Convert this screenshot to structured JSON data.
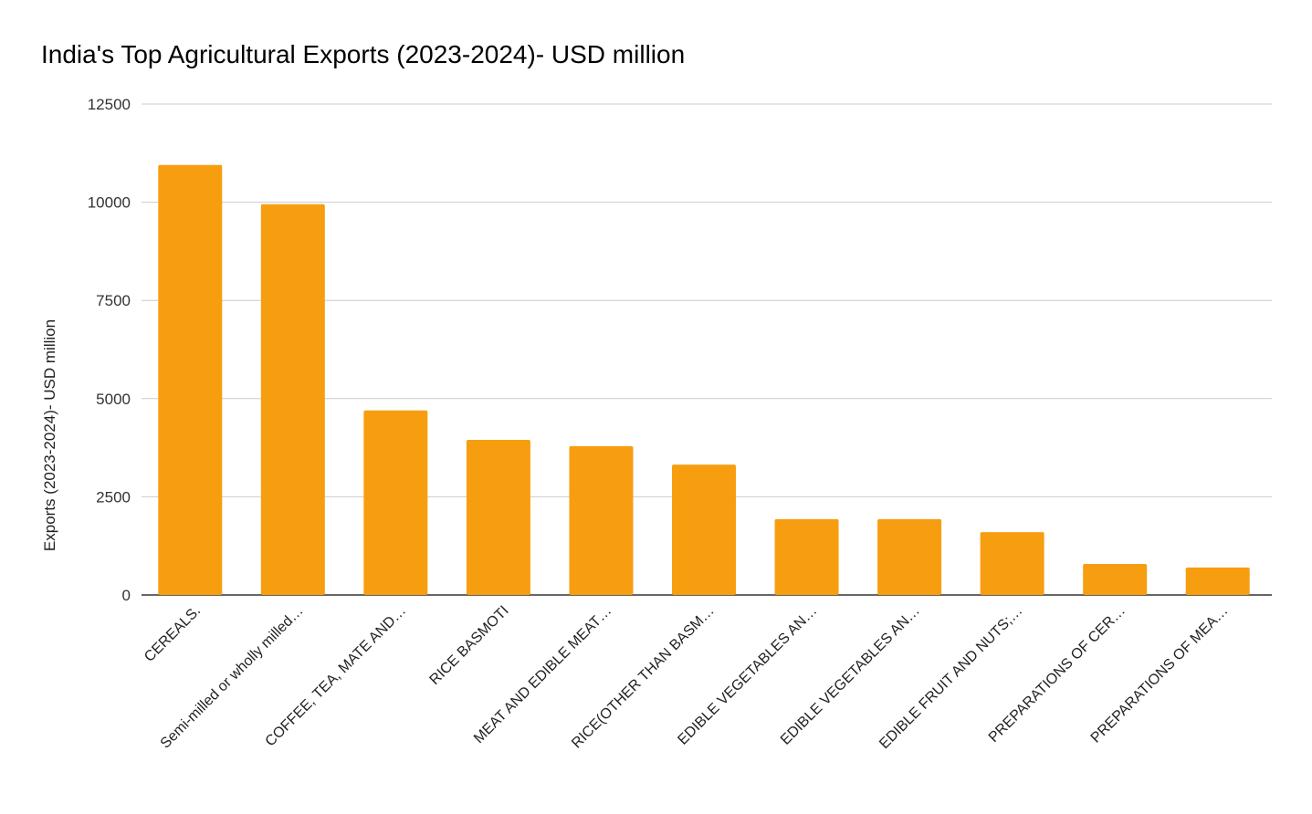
{
  "chart_data": {
    "type": "bar",
    "title": "India's Top Agricultural Exports (2023-2024)- USD million",
    "xlabel": "",
    "ylabel": "Exports (2023-2024)- USD million",
    "ylim": [
      0,
      12500
    ],
    "yticks": [
      0,
      2500,
      5000,
      7500,
      10000,
      12500
    ],
    "grid": true,
    "legend": "none",
    "bar_color": "#F79E10",
    "categories": [
      "CEREALS.",
      "Semi-milled or wholly milled…",
      "COFFEE, TEA, MATE AND…",
      "RICE BASMOTI",
      "MEAT AND EDIBLE MEAT…",
      "RICE(OTHER THAN BASM…",
      "EDIBLE VEGETABLES AN…",
      "EDIBLE VEGETABLES AN…",
      "EDIBLE FRUIT AND NUTS;…",
      "PREPARATIONS OF CER…",
      "PREPARATIONS OF MEA…"
    ],
    "values": [
      10950,
      9950,
      4700,
      3950,
      3790,
      3320,
      1930,
      1930,
      1600,
      790,
      700
    ]
  }
}
